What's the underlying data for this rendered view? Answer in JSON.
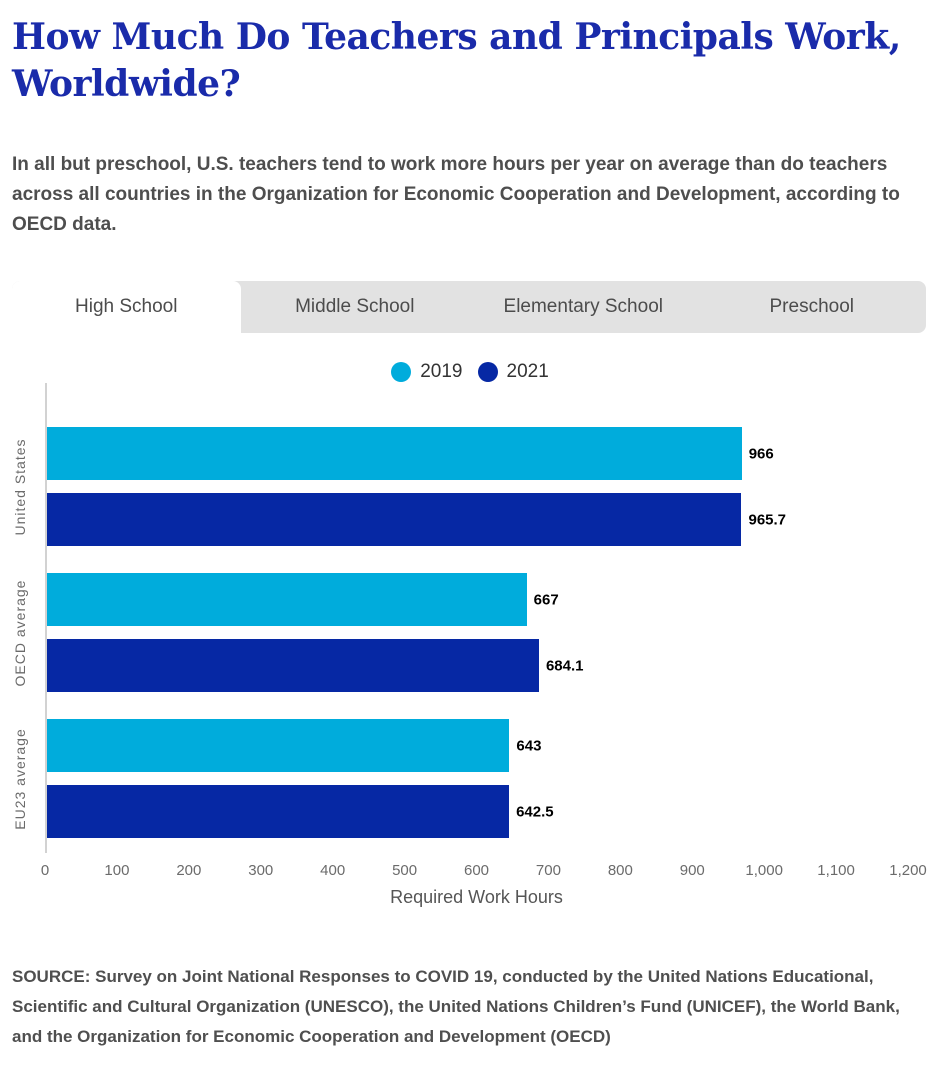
{
  "page": {
    "title_lines": [
      "How Much Do Teachers and Principals Work,",
      "Worldwide?"
    ],
    "subtitle": "In all but preschool, U.S. teachers tend to work more hours per year on average than do teachers across all countries in the Organization for Economic Cooperation and Development, according to OECD data.",
    "source": "SOURCE: Survey on Joint National Responses to COVID 19, conducted by the United Nations Educational, Scientific and Cultural Organization (UNESCO), the United Nations Children’s Fund (UNICEF), the World Bank, and the Organization for Economic Cooperation and Development (OECD)"
  },
  "tabs": [
    {
      "label": "High School",
      "active": true
    },
    {
      "label": "Middle School",
      "active": false
    },
    {
      "label": "Elementary School",
      "active": false
    },
    {
      "label": "Preschool",
      "active": false
    }
  ],
  "legend": [
    {
      "label": "2019",
      "color": "#00ACDC"
    },
    {
      "label": "2021",
      "color": "#0628A4"
    }
  ],
  "chart_data": {
    "type": "bar",
    "orientation": "horizontal",
    "title": "High School - Required Work Hours",
    "categories": [
      "United States",
      "OECD average",
      "EU23 average"
    ],
    "series": [
      {
        "name": "2019",
        "color": "#00ACDC",
        "values": [
          966,
          667,
          643
        ]
      },
      {
        "name": "2021",
        "color": "#0628A4",
        "values": [
          965.7,
          684.1,
          642.5
        ]
      }
    ],
    "xlabel": "Required Work Hours",
    "ylabel": "",
    "xlim": [
      0,
      1200
    ],
    "x_ticks": [
      "0",
      "100",
      "200",
      "300",
      "400",
      "500",
      "600",
      "700",
      "800",
      "900",
      "1,000",
      "1,100",
      "1,200"
    ],
    "grid": false,
    "legend_position": "top",
    "value_labels_shown": true
  },
  "colors": {
    "title": "#1A2BAA",
    "body_text": "#4F4F4F",
    "tab_strip": "#e2e2e2",
    "axis_line": "#d2d2d2"
  }
}
